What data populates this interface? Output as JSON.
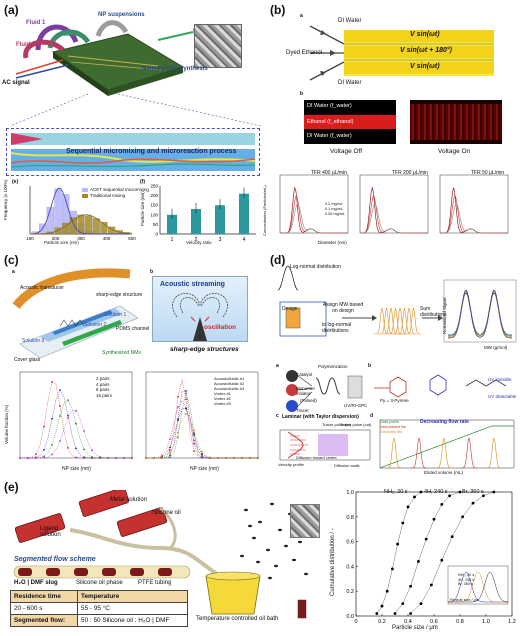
{
  "panels": {
    "a": {
      "label": "(a)",
      "fluid1": "Fluid 1",
      "fluid2": "Fluid 2",
      "fluid3": "Fluid 3",
      "np_suspensions": "NP suspensions",
      "ac_signal": "AC signal",
      "nanoparticle_synthesis": "Nanoparticle synthesis",
      "process": "Sequential micromixing and microreaction process",
      "sub_e": "(e)",
      "sub_f": "(f)",
      "hist_legend": [
        "ACET sequential micromixing",
        "Traditional mixing"
      ],
      "hist_xlabel": "Particle size (nm)",
      "hist_ylabel": "Frequency (x 100%)",
      "hist_xticks": [
        "100",
        "200",
        "300",
        "400",
        "500"
      ],
      "bar_xlabel": "Velocity ratio",
      "bar_ylabel": "Particle size (nm)",
      "bar_xticks": [
        "1",
        "2",
        "3",
        "4"
      ],
      "bar_yticks": [
        "0",
        "50",
        "100",
        "150",
        "200",
        "250"
      ]
    },
    "b": {
      "label": "(b)",
      "sub_a": "a",
      "sub_b": "b",
      "di_water_top": "DI Water",
      "di_water_bottom": "DI Water",
      "dyed_ethanol": "Dyed Ethanol",
      "v1": "V sin(ωt)",
      "v2": "V sin(ωt + 180°)",
      "v3": "V sin(ωt)",
      "band1": "DI Water (f_water)",
      "band2": "Ethanol (f_ethanol)",
      "band3": "DI Water (f_water)",
      "voltage_off": "Voltage Off",
      "voltage_on": "Voltage On",
      "tfr_titles": [
        "TFR 400 μL/min",
        "TFR 200 μL/min",
        "TFR 50 μL/min"
      ],
      "conc_legend": [
        "0.2 mg/mL",
        "0.1 mg/mL",
        "0.05 mg/mL"
      ],
      "dist_xlabel": "Diameter (nm)",
      "dist_ylabel": "Concentration (Particles/mL)"
    },
    "c": {
      "label": "(c)",
      "sub_a": "a",
      "sub_b": "b",
      "acoustic_transducer": "Acoustic transducer",
      "sharp_edge": "sharp-edge structure",
      "solution1": "Solution 1",
      "solution2": "Solution 2",
      "solution3": "Solution 3",
      "pdms": "PDMS channel",
      "synthesized": "Synthesized NMs",
      "cover_glass": "Cover glass",
      "acoustic_streaming": "Acoustic streaming",
      "oscillation": "oscillation",
      "sharp_edge_structures": "sharp-edge structures",
      "left_legend": [
        "2 pairs",
        "4 pairs",
        "8 pairs",
        "15 pairs"
      ],
      "right_legend": [
        "Acoustofluidic #1",
        "Acoustofluidic #2",
        "Acoustofluidic #3",
        "Vortex #1",
        "Vortex #2",
        "Vortex #3"
      ],
      "xlabel": "NP size (nm)",
      "ylabel": "Volume fraction (%)"
    },
    "d": {
      "label": "(d)",
      "lognormal": "Log-normal distribution",
      "design": "Design",
      "assign": "Assign MW based on design",
      "to_lognormal": "to log-normal distributions",
      "sum": "Sum distributions",
      "mw": "MW",
      "sub_a": "a",
      "sub_b": "b",
      "sub_c": "c",
      "sub_d": "d",
      "catalyst": "Catalyst",
      "monomer": "Monomer initiator",
      "pulsed": "(Pulsed)",
      "tracer": "Tracer",
      "polymerization": "Polymerization",
      "uv_gpc": "UV/RI-GPC",
      "laminar": "Laminar (with Taylor dispersion)",
      "tracer_pulse_in": "Tracer pulse (in)",
      "tracer_pulse_out": "Tracer pulse (out)",
      "velocity_profile": "Velocity profile",
      "diffusion_toward": "Diffusion toward center",
      "diffusion_walls": "Diffusion walls",
      "decreasing": "Decreasing flow rate",
      "uv_invisible": "UV invisible",
      "uv_detectable": "UV detectable",
      "data_legend": [
        "Data points",
        "Interpolated fits",
        "Extracted fits"
      ],
      "mw_xlabel": "MW (g/mol)",
      "norm_ylabel": "Normalized Signal",
      "eluted_label": "Eluted volume (mL)",
      "py": "Py = 3-Pyrene"
    },
    "e": {
      "label": "(e)",
      "metal": "Metal solution",
      "silicone": "Silicone oil",
      "ligand": "Ligand solution",
      "scheme": "Segmented flow scheme",
      "slug": "H₂O | DMF slug",
      "oil_phase": "Silicone oil phase",
      "ptfe": "PTFE tubing",
      "bath": "Temperature controlled oil bath",
      "table": [
        [
          "Residence time",
          "Temperature"
        ],
        [
          "20 - 600 s",
          "55 - 95 °C"
        ],
        [
          "Segmented flow:",
          "50 : 50 Silicone oil : H₂O | DMF"
        ]
      ],
      "curve_labels": [
        "NH₂, 20 s",
        "4H, 240 s",
        "Br, 360 s"
      ],
      "inset_labels": [
        "NH₂, 20 s",
        "4H, 240 s",
        "Br, 360 s"
      ],
      "inset_xlabel": "Particle size / μm",
      "xlabel": "Particle size / μm",
      "ylabel": "Cumulative distribution / -",
      "xticks": [
        "0",
        "0.2",
        "0.4",
        "0.6",
        "0.8",
        "1.0",
        "1.2"
      ],
      "yticks": [
        "0.0",
        "0.2",
        "0.4",
        "0.6",
        "0.8",
        "1.0"
      ]
    }
  },
  "chart_data": [
    {
      "type": "bar",
      "panel": "a-f",
      "categories": [
        "1",
        "2",
        "3",
        "4"
      ],
      "values": [
        100,
        130,
        150,
        210
      ],
      "xlabel": "Velocity ratio",
      "ylabel": "Particle size (nm)",
      "ylim": [
        0,
        250
      ]
    },
    {
      "type": "bar",
      "panel": "a-e",
      "x": [
        120,
        150,
        180,
        210,
        240,
        270,
        300,
        330,
        360,
        390,
        420,
        450,
        480
      ],
      "series": [
        {
          "name": "ACET sequential micromixing",
          "values": [
            0.05,
            0.22,
            0.58,
            0.98,
            0.86,
            0.5,
            0.22,
            0.06,
            0.02,
            0,
            0,
            0,
            0
          ]
        },
        {
          "name": "Traditional mixing",
          "values": [
            0,
            0,
            0.05,
            0.14,
            0.24,
            0.36,
            0.42,
            0.4,
            0.34,
            0.26,
            0.16,
            0.08,
            0.04
          ]
        }
      ],
      "xlabel": "Particle size (nm)",
      "ylabel": "Frequency (x 100%)"
    },
    {
      "type": "scatter",
      "panel": "e",
      "series": [
        {
          "name": "NH₂, 20 s",
          "x": [
            0.16,
            0.2,
            0.24,
            0.28,
            0.32,
            0.36,
            0.4,
            0.45,
            0.5
          ],
          "y": [
            0.02,
            0.08,
            0.2,
            0.38,
            0.58,
            0.75,
            0.88,
            0.96,
            1.0
          ]
        },
        {
          "name": "4H, 240 s",
          "x": [
            0.3,
            0.36,
            0.42,
            0.48,
            0.54,
            0.6,
            0.66,
            0.72,
            0.8
          ],
          "y": [
            0.02,
            0.1,
            0.24,
            0.44,
            0.62,
            0.78,
            0.9,
            0.97,
            1.0
          ]
        },
        {
          "name": "Br, 360 s",
          "x": [
            0.42,
            0.5,
            0.58,
            0.66,
            0.74,
            0.82,
            0.9,
            0.98,
            1.06
          ],
          "y": [
            0.02,
            0.1,
            0.25,
            0.45,
            0.64,
            0.8,
            0.91,
            0.97,
            1.0
          ]
        }
      ],
      "xlabel": "Particle size / μm",
      "ylabel": "Cumulative distribution / -",
      "xlim": [
        0,
        1.2
      ],
      "ylim": [
        0,
        1.0
      ]
    }
  ]
}
